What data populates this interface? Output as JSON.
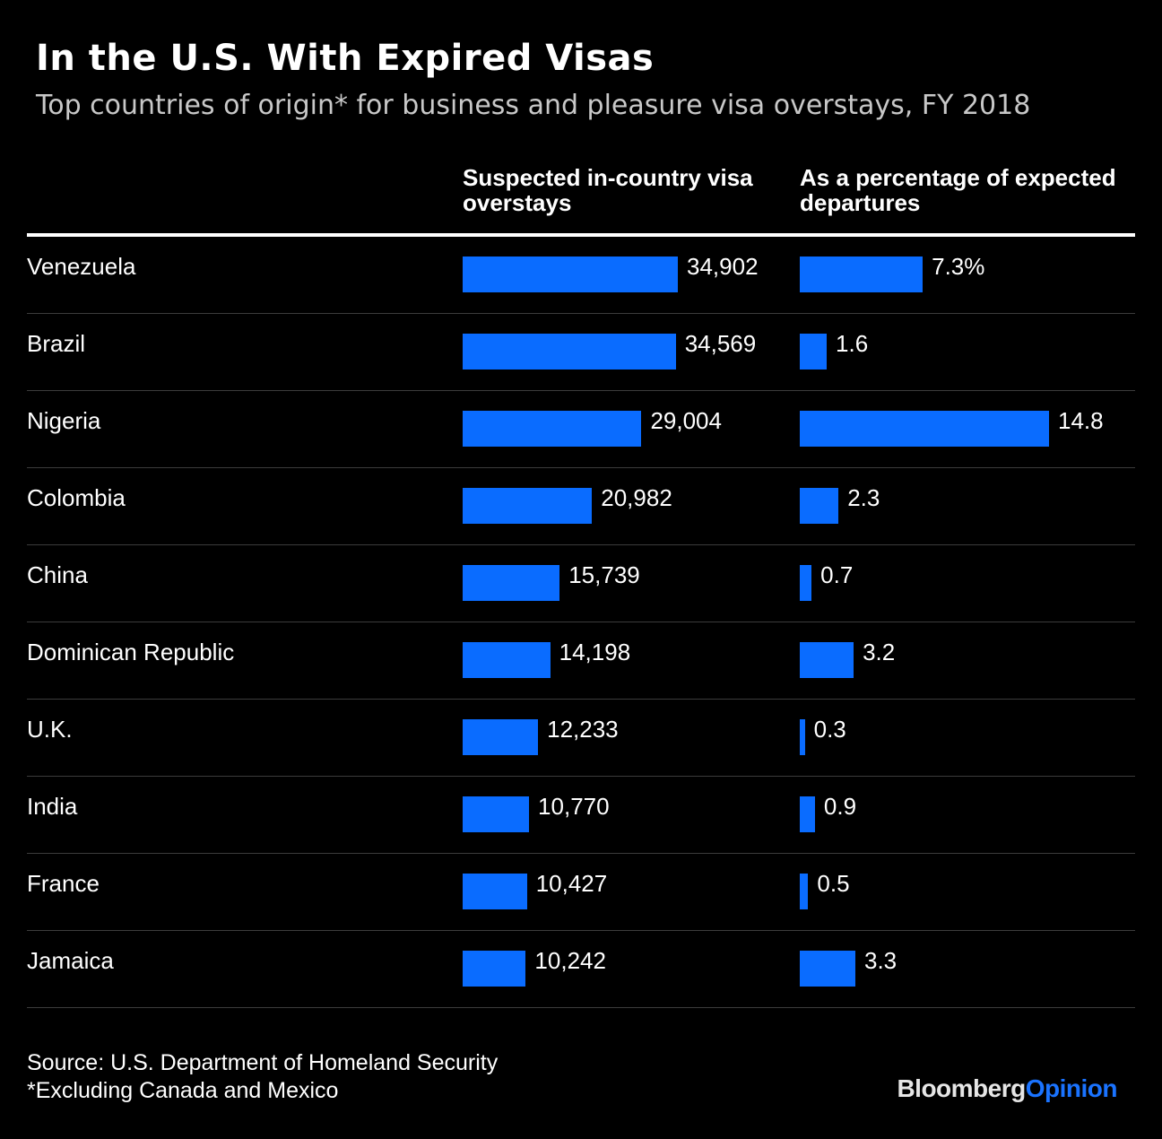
{
  "header": {
    "title": "In the U.S. With Expired Visas",
    "subtitle": "Top countries of origin* for business and pleasure visa overstays, FY 2018"
  },
  "columns": {
    "overstays_heading": "Suspected in-country visa overstays",
    "percent_heading": "As a percentage of expected departures"
  },
  "footer": {
    "source": "Source: U.S. Department of Homeland Security",
    "note": "*Excluding Canada and Mexico",
    "brand_part1": "Bloomberg",
    "brand_part2": "Opinion"
  },
  "colors": {
    "bar": "#0a6cff",
    "background": "#000000",
    "text": "#ffffff"
  },
  "chart_data": {
    "type": "bar",
    "title": "In the U.S. With Expired Visas",
    "subtitle": "Top countries of origin* for business and pleasure visa overstays, FY 2018",
    "categories": [
      "Venezuela",
      "Brazil",
      "Nigeria",
      "Colombia",
      "China",
      "Dominican Republic",
      "U.K.",
      "India",
      "France",
      "Jamaica"
    ],
    "series": [
      {
        "name": "Suspected in-country visa overstays",
        "values": [
          34902,
          34569,
          29004,
          20982,
          15739,
          14198,
          12233,
          10770,
          10427,
          10242
        ],
        "labels": [
          "34,902",
          "34,569",
          "29,004",
          "20,982",
          "15,739",
          "14,198",
          "12,233",
          "10,770",
          "10,427",
          "10,242"
        ]
      },
      {
        "name": "As a percentage of expected departures",
        "values": [
          7.3,
          1.6,
          14.8,
          2.3,
          0.7,
          3.2,
          0.3,
          0.9,
          0.5,
          3.3
        ],
        "labels": [
          "7.3%",
          "1.6",
          "14.8",
          "2.3",
          "0.7",
          "3.2",
          "0.3",
          "0.9",
          "0.5",
          "3.3"
        ]
      }
    ],
    "orientation": "horizontal"
  }
}
